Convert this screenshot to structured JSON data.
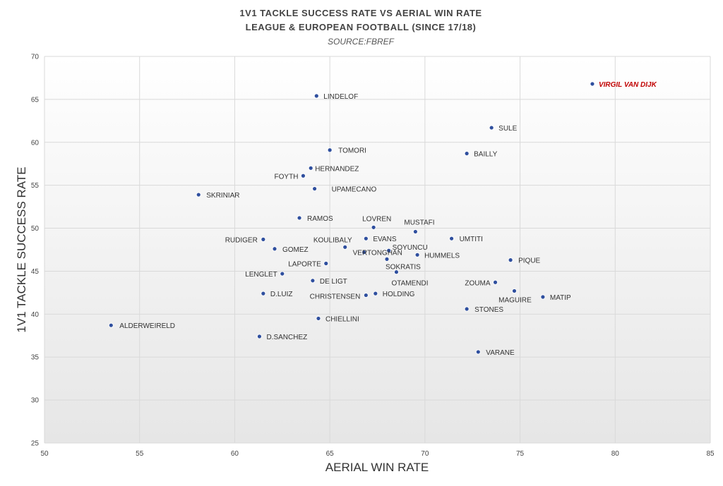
{
  "chart_data": {
    "type": "scatter",
    "title_lines": [
      "1V1 TACKLE SUCCESS RATE VS AERIAL WIN RATE",
      "LEAGUE & EUROPEAN FOOTBALL (SINCE 17/18)"
    ],
    "subtitle": "SOURCE:FBREF",
    "xlabel": "AERIAL WIN RATE",
    "ylabel": "1V1 TACKLE SUCCESS RATE",
    "xlim": [
      50,
      85
    ],
    "ylim": [
      25,
      70
    ],
    "xticks": [
      50,
      55,
      60,
      65,
      70,
      75,
      80,
      85
    ],
    "yticks": [
      25,
      30,
      35,
      40,
      45,
      50,
      55,
      60,
      65,
      70
    ],
    "grid": true,
    "point_color": "#2f4f9e",
    "highlight_color": "#c00000",
    "points": [
      {
        "label": "VIRGIL VAN DIJK",
        "x": 78.8,
        "y": 66.8,
        "highlight": true
      },
      {
        "label": "LINDELOF",
        "x": 64.3,
        "y": 65.4
      },
      {
        "label": "SULE",
        "x": 73.5,
        "y": 61.7
      },
      {
        "label": "TOMORI",
        "x": 65.0,
        "y": 59.1
      },
      {
        "label": "BAILLY",
        "x": 72.2,
        "y": 58.7
      },
      {
        "label": "HERNANDEZ",
        "x": 64.0,
        "y": 57.0
      },
      {
        "label": "FOYTH",
        "x": 63.6,
        "y": 56.1
      },
      {
        "label": "UPAMECANO",
        "x": 64.2,
        "y": 54.6
      },
      {
        "label": "SKRINIAR",
        "x": 58.1,
        "y": 53.9
      },
      {
        "label": "RAMOS",
        "x": 63.4,
        "y": 51.2
      },
      {
        "label": "LOVREN",
        "x": 67.3,
        "y": 50.1
      },
      {
        "label": "MUSTAFI",
        "x": 69.5,
        "y": 49.6
      },
      {
        "label": "RUDIGER",
        "x": 61.5,
        "y": 48.7
      },
      {
        "label": "UMTITI",
        "x": 71.4,
        "y": 48.8
      },
      {
        "label": "KOULIBALY",
        "x": 65.8,
        "y": 47.8
      },
      {
        "label": "EVANS",
        "x": 66.9,
        "y": 48.8
      },
      {
        "label": "GOMEZ",
        "x": 62.1,
        "y": 47.6
      },
      {
        "label": "SOYUNCU",
        "x": 68.1,
        "y": 47.4
      },
      {
        "label": "HUMMELS",
        "x": 69.6,
        "y": 46.9
      },
      {
        "label": "PIQUE",
        "x": 74.5,
        "y": 46.3
      },
      {
        "label": "LAPORTE",
        "x": 64.8,
        "y": 45.9
      },
      {
        "label": "VERTONGHAN",
        "x": 66.8,
        "y": 47.2
      },
      {
        "label": "SOKRATIS",
        "x": 68.0,
        "y": 46.4
      },
      {
        "label": "LENGLET",
        "x": 62.5,
        "y": 44.7
      },
      {
        "label": "OTAMENDI",
        "x": 68.5,
        "y": 44.9
      },
      {
        "label": "DE LIGT",
        "x": 64.1,
        "y": 43.9
      },
      {
        "label": "ZOUMA",
        "x": 73.7,
        "y": 43.7
      },
      {
        "label": "MAGUIRE",
        "x": 74.7,
        "y": 42.7
      },
      {
        "label": "MATIP",
        "x": 76.2,
        "y": 42.0
      },
      {
        "label": "D.LUIZ",
        "x": 61.5,
        "y": 42.4
      },
      {
        "label": "CHRISTENSEN",
        "x": 66.9,
        "y": 42.2
      },
      {
        "label": "HOLDING",
        "x": 67.4,
        "y": 42.4
      },
      {
        "label": "STONES",
        "x": 72.2,
        "y": 40.6
      },
      {
        "label": "CHIELLINI",
        "x": 64.4,
        "y": 39.5
      },
      {
        "label": "ALDERWEIRELD",
        "x": 53.5,
        "y": 38.7
      },
      {
        "label": "D.SANCHEZ",
        "x": 61.3,
        "y": 37.4
      },
      {
        "label": "VARANE",
        "x": 72.8,
        "y": 35.6
      }
    ]
  }
}
